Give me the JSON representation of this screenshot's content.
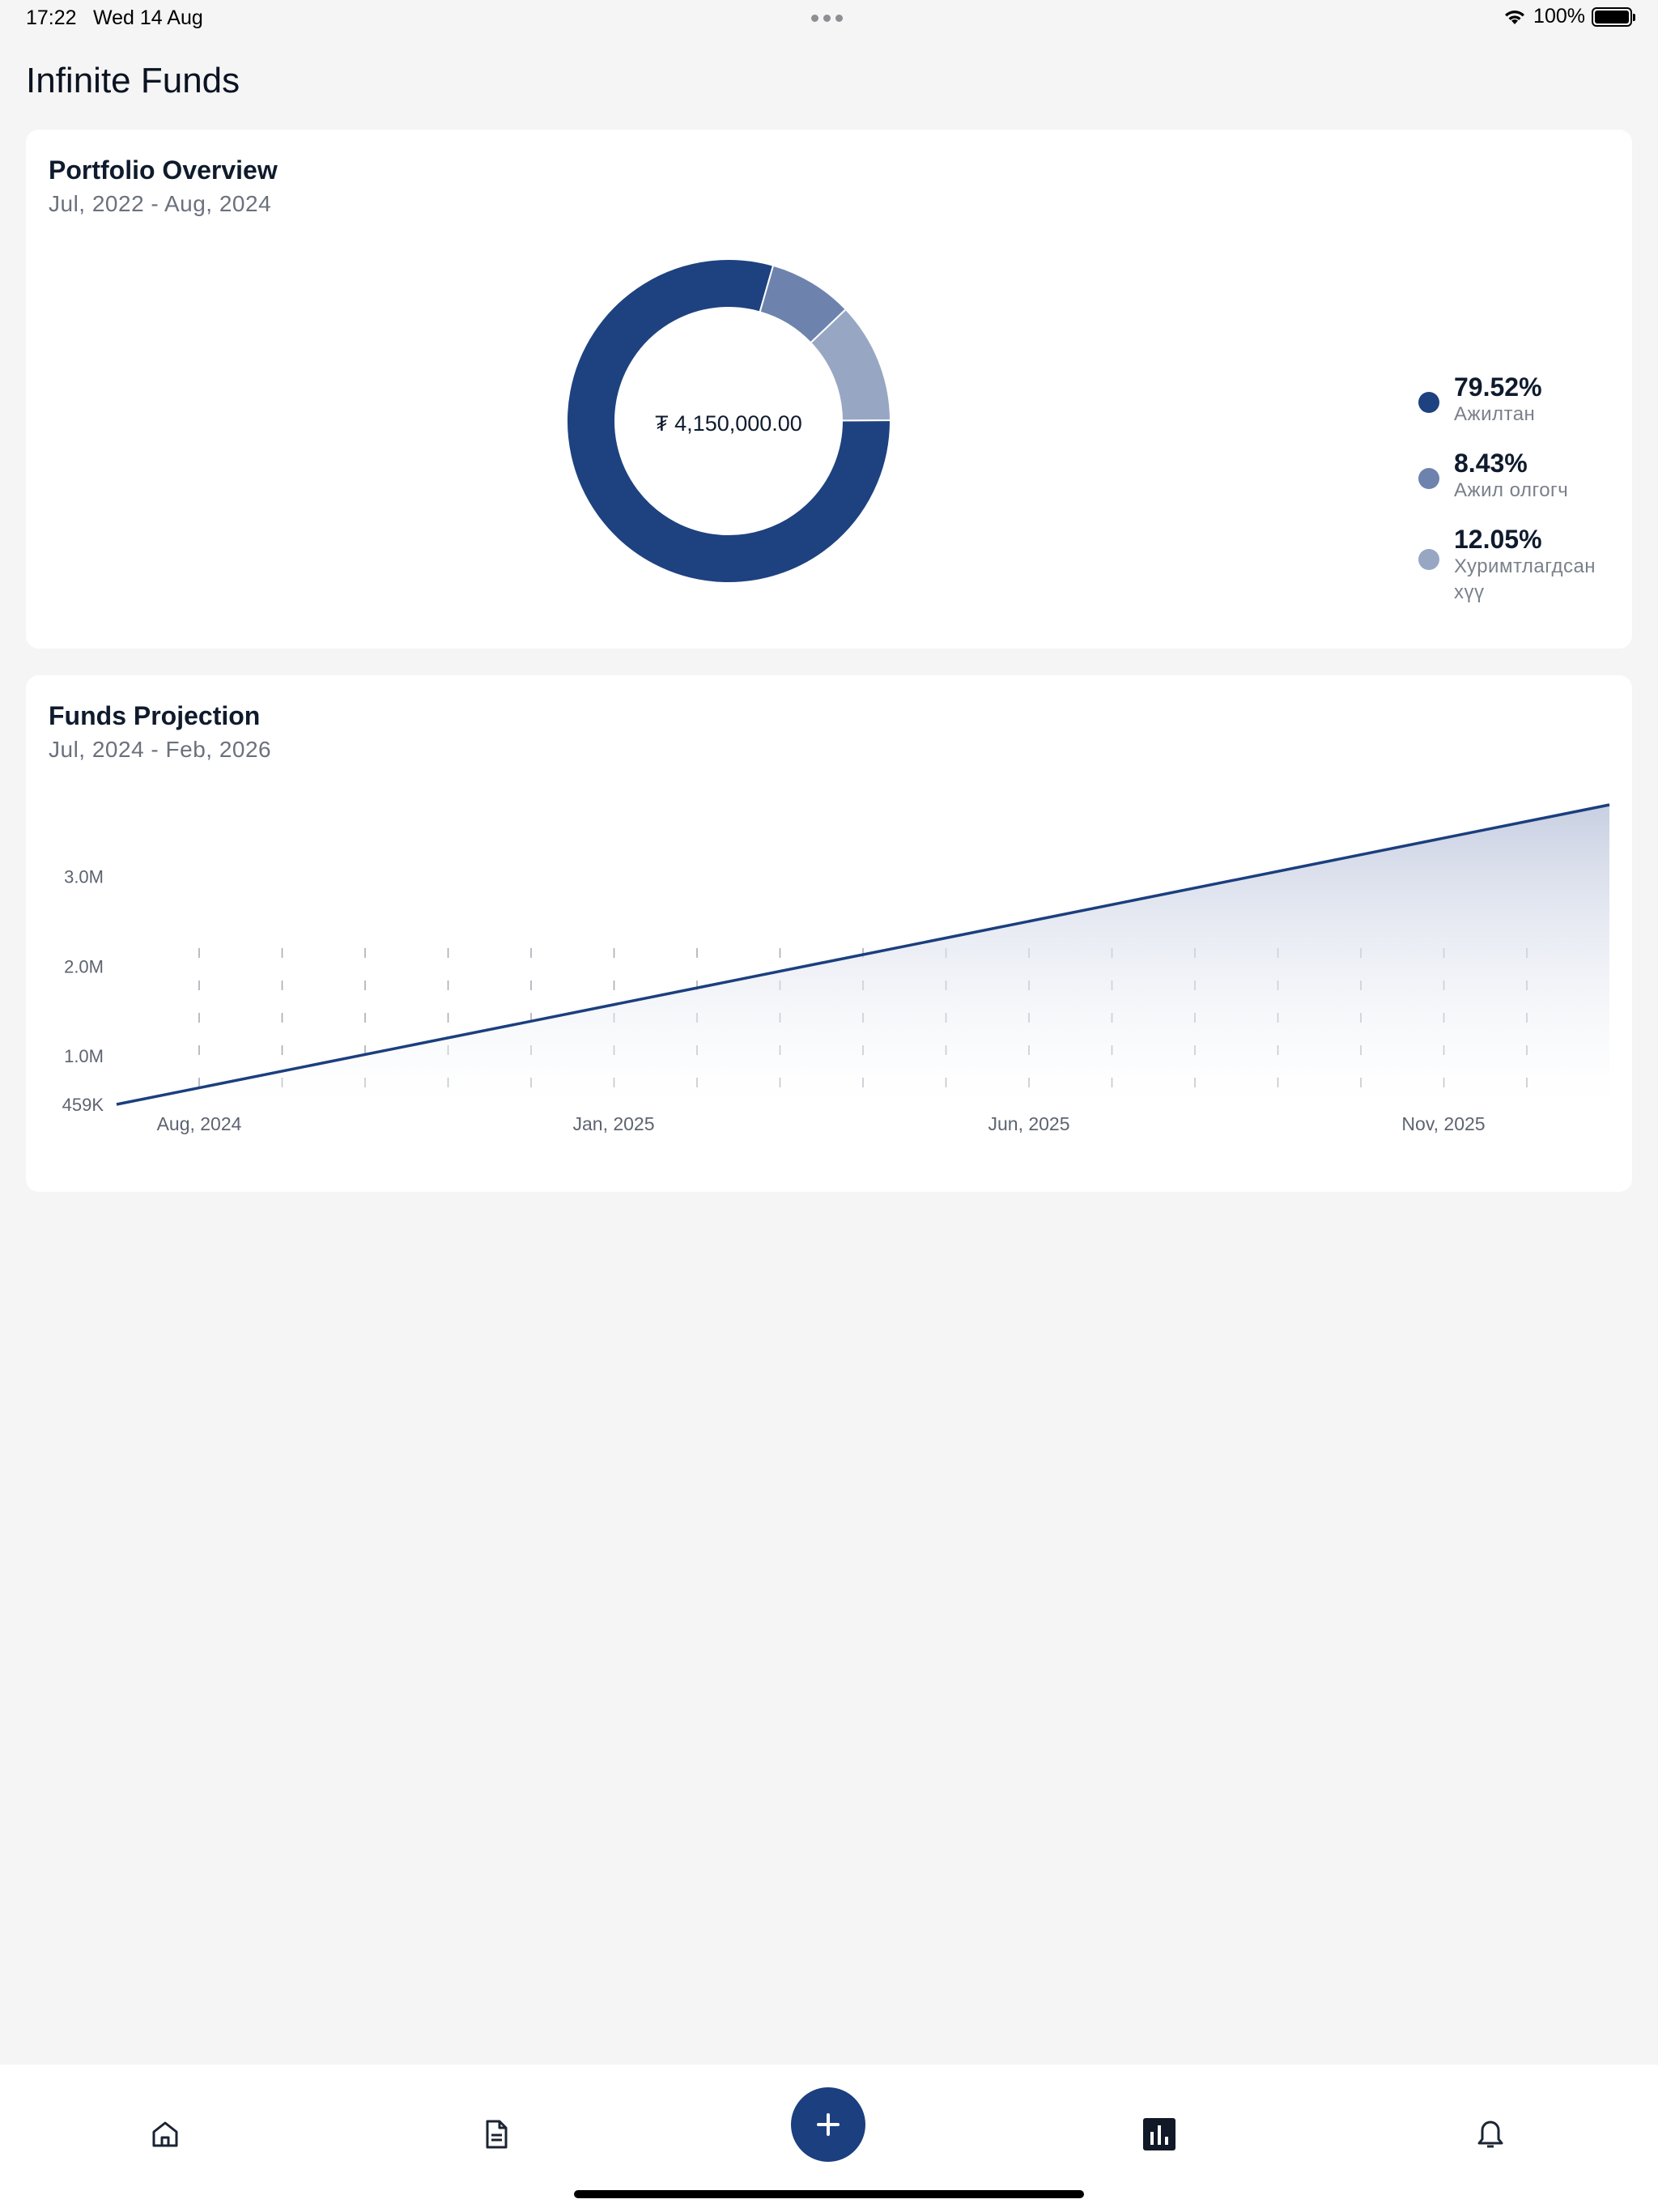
{
  "status": {
    "time": "17:22",
    "date": "Wed 14 Aug",
    "battery": "100%"
  },
  "app": {
    "title": "Infinite Funds"
  },
  "portfolio": {
    "title": "Portfolio Overview",
    "period": "Jul, 2022 - Aug, 2024",
    "total": "₮ 4,150,000.00",
    "chart_data": {
      "type": "pie",
      "slices": [
        {
          "value": 79.52,
          "percent_label": "79.52%",
          "label": "Ажилтан",
          "color": "#1e4280"
        },
        {
          "value": 8.43,
          "percent_label": "8.43%",
          "label": "Ажил олгогч",
          "color": "#6d83ad"
        },
        {
          "value": 12.05,
          "percent_label": "12.05%",
          "label": "Хуримтлагдсан хүү",
          "color": "#97a7c3"
        }
      ]
    }
  },
  "projection": {
    "title": "Funds Projection",
    "period": "Jul, 2024 - Feb, 2026",
    "chart_data": {
      "type": "area",
      "x_start": "Jul, 2024",
      "x_end": "Feb, 2026",
      "x": [
        "Jul, 2024",
        "Feb, 2026"
      ],
      "values": [
        459000,
        3800000
      ],
      "ylim": [
        459000,
        3800000
      ],
      "y_ticks": [
        {
          "value": 459000,
          "label": "459K"
        },
        {
          "value": 1000000,
          "label": "1.0M"
        },
        {
          "value": 2000000,
          "label": "2.0M"
        },
        {
          "value": 3000000,
          "label": "3.0M"
        }
      ],
      "x_ticks": [
        "Aug, 2024",
        "Jan, 2025",
        "Jun, 2025",
        "Nov, 2025"
      ],
      "line_color": "#1b3f7f",
      "grid": "vertical dashed"
    }
  },
  "tabs": [
    {
      "name": "home-icon",
      "active": false
    },
    {
      "name": "document-icon",
      "active": false
    },
    {
      "name": "add-icon",
      "active": false
    },
    {
      "name": "chart-icon",
      "active": true
    },
    {
      "name": "bell-icon",
      "active": false
    }
  ]
}
